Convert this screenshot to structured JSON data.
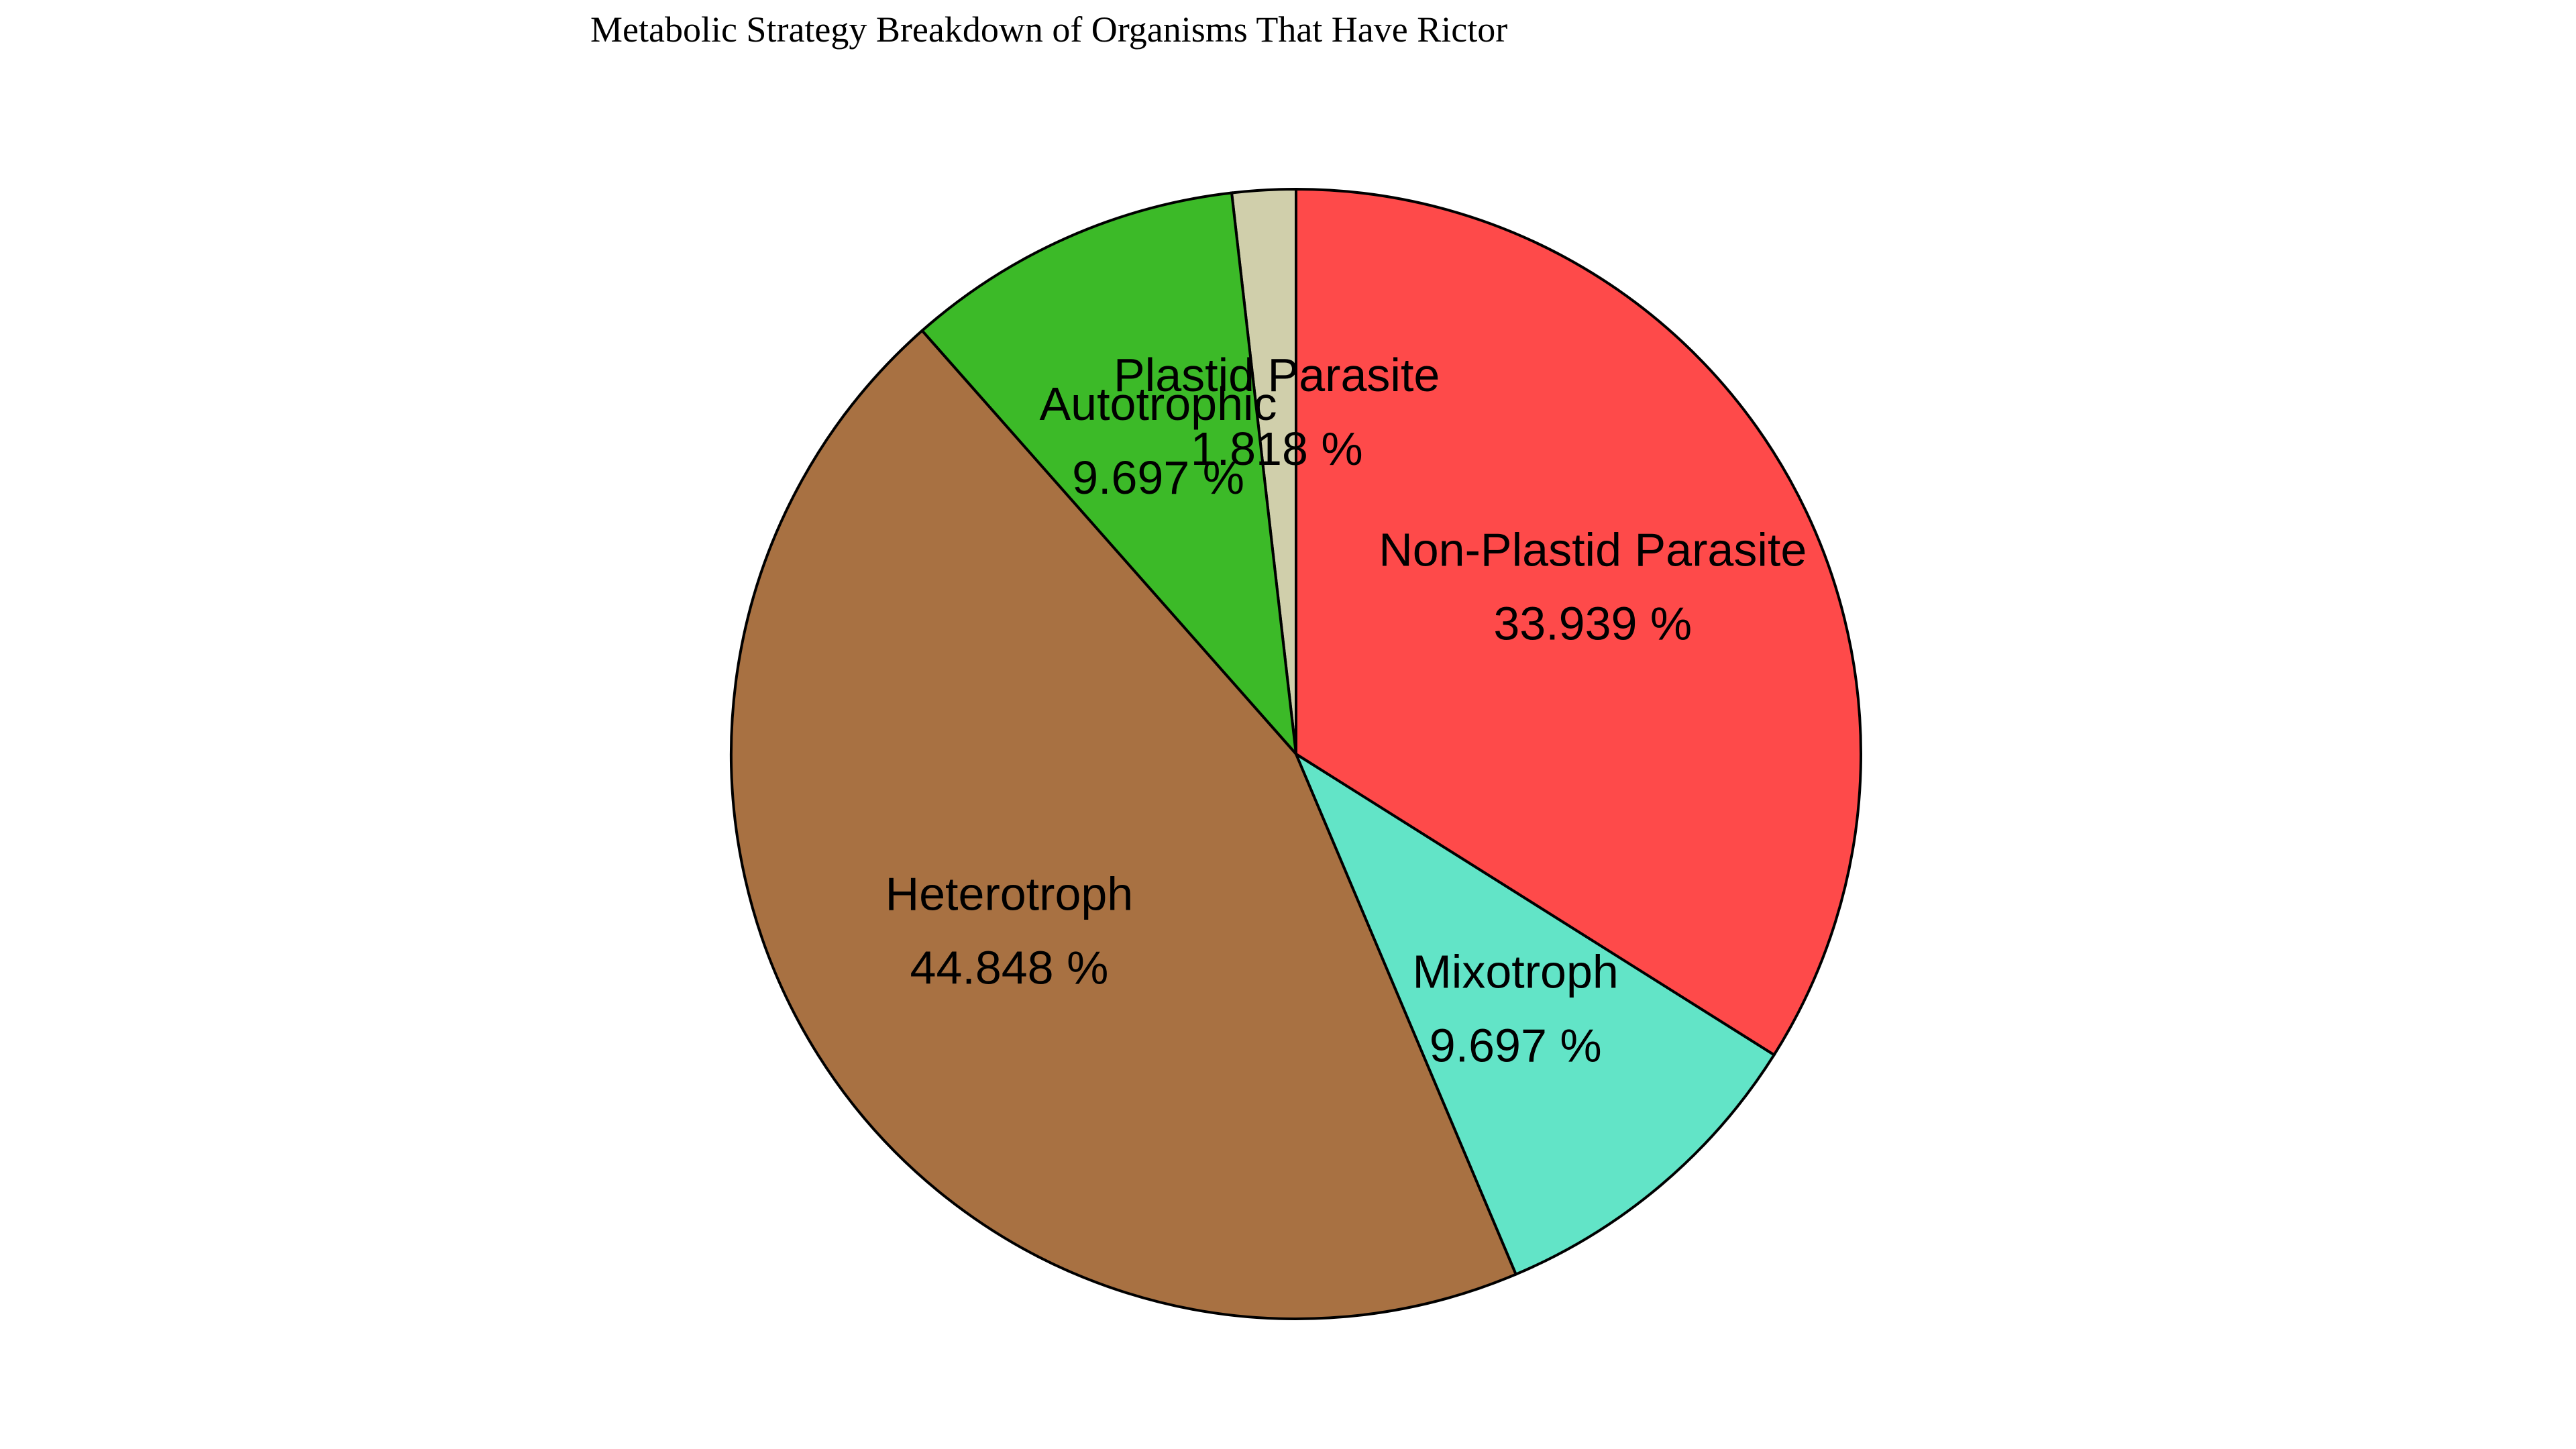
{
  "chart_data": {
    "type": "pie",
    "title": "Metabolic Strategy Breakdown of Organisms That Have Rictor",
    "start_angle_deg": 90,
    "direction": "counterclockwise",
    "slices": [
      {
        "label": "Plastid Parasite",
        "value": 1.818,
        "pct_text": "1.818 %",
        "color": "#d0cfab"
      },
      {
        "label": "Autotrophic",
        "value": 9.697,
        "pct_text": "9.697 %",
        "color": "#3cba28"
      },
      {
        "label": "Heterotroph",
        "value": 44.848,
        "pct_text": "44.848 %",
        "color": "#a87142"
      },
      {
        "label": "Mixotroph",
        "value": 9.697,
        "pct_text": "9.697 %",
        "color": "#62e4c7"
      },
      {
        "label": "Non-Plastid Parasite",
        "value": 33.939,
        "pct_text": "33.939 %",
        "color": "#fe4a4a"
      }
    ]
  }
}
